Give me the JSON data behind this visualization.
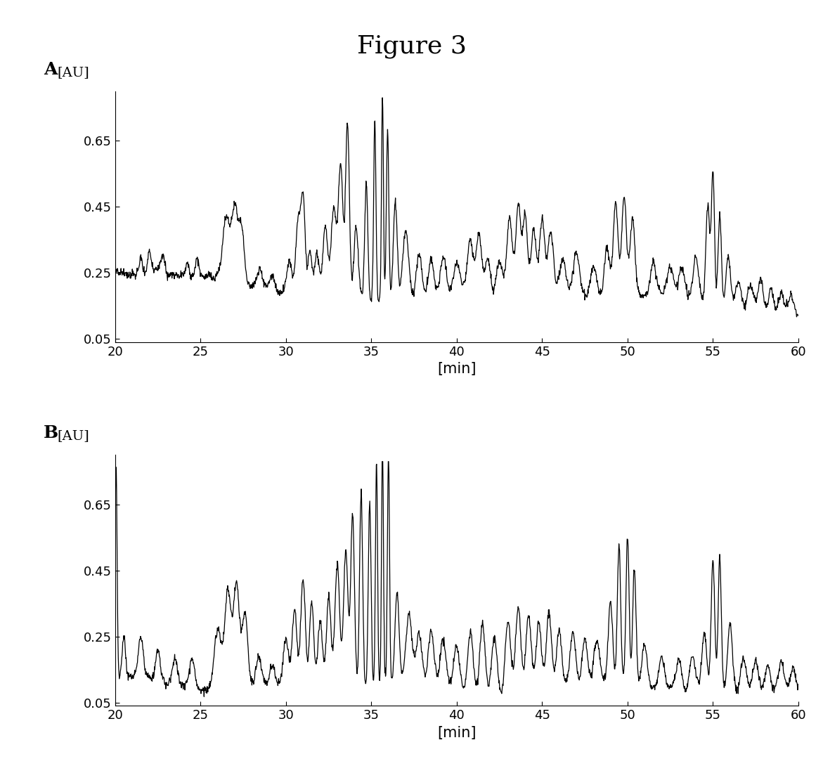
{
  "title": "Figure 3",
  "title_fontsize": 26,
  "title_fontfamily": "serif",
  "panel_labels": [
    "A",
    "B"
  ],
  "panel_label_fontsize": 18,
  "panel_label_fontfamily": "serif",
  "xlabel": "[min]",
  "au_label": "[AU]",
  "xlabel_fontsize": 15,
  "au_label_fontsize": 14,
  "tick_fontsize": 13,
  "xlim": [
    20,
    60
  ],
  "ylim": [
    0.04,
    0.8
  ],
  "yticks": [
    0.05,
    0.25,
    0.45,
    0.65
  ],
  "ytick_labels": [
    "0.05",
    "0.25",
    "0.45",
    "0.65"
  ],
  "xticks": [
    20,
    25,
    30,
    35,
    40,
    45,
    50,
    55,
    60
  ],
  "line_color": "#000000",
  "line_width": 0.9,
  "background_color": "#ffffff",
  "n_points": 2000
}
